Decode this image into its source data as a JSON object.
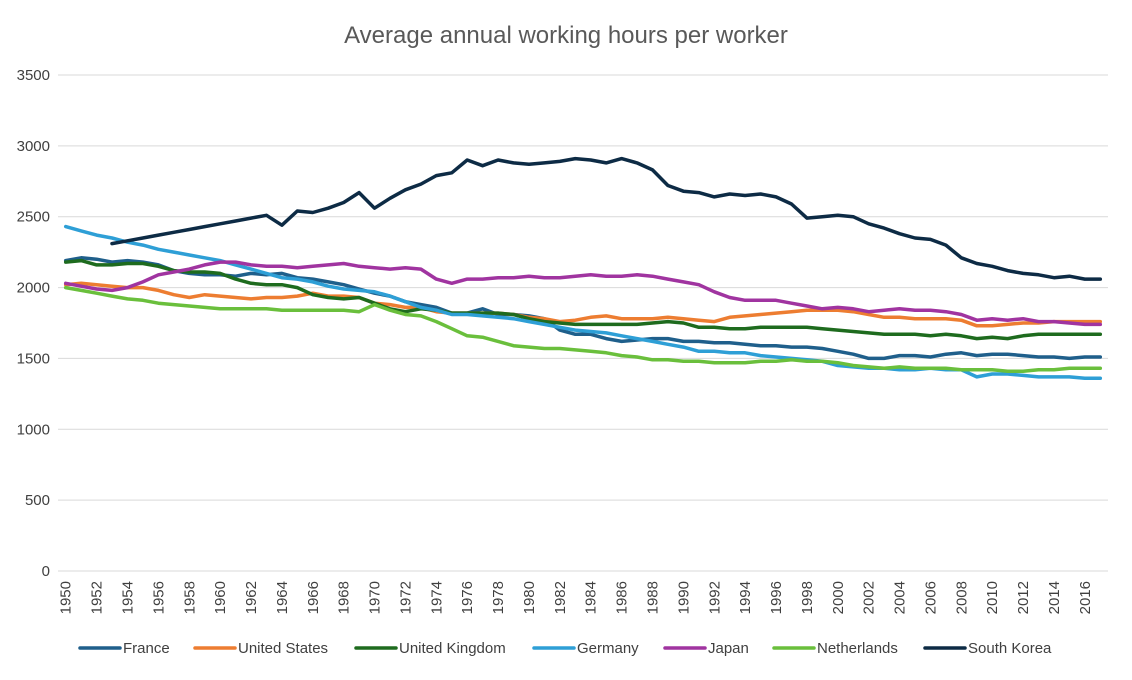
{
  "chart_data": {
    "type": "line",
    "title": "Average annual working hours per worker",
    "xlabel": "",
    "ylabel": "",
    "ylim": [
      0,
      3500
    ],
    "yticks": [
      "0",
      "500",
      "1000",
      "1500",
      "2000",
      "2500",
      "3000",
      "3500"
    ],
    "xrange": [
      1950,
      2017
    ],
    "xticks": [
      "1950",
      "1952",
      "1954",
      "1956",
      "1958",
      "1960",
      "1962",
      "1964",
      "1966",
      "1968",
      "1970",
      "1972",
      "1974",
      "1976",
      "1978",
      "1980",
      "1982",
      "1984",
      "1986",
      "1988",
      "1990",
      "1992",
      "1994",
      "1996",
      "1998",
      "2000",
      "2002",
      "2004",
      "2006",
      "2008",
      "2010",
      "2012",
      "2014",
      "2016"
    ],
    "grid": true,
    "legend_position": "bottom",
    "series": [
      {
        "name": "France",
        "color": "#1f5f8b",
        "start_year": 1950,
        "values": [
          2190,
          2210,
          2200,
          2180,
          2190,
          2180,
          2160,
          2120,
          2100,
          2090,
          2090,
          2080,
          2100,
          2090,
          2100,
          2070,
          2060,
          2040,
          2020,
          1990,
          1960,
          1940,
          1900,
          1880,
          1860,
          1820,
          1820,
          1850,
          1810,
          1810,
          1800,
          1780,
          1700,
          1670,
          1670,
          1640,
          1620,
          1630,
          1640,
          1640,
          1620,
          1620,
          1610,
          1610,
          1600,
          1590,
          1590,
          1580,
          1580,
          1570,
          1550,
          1530,
          1500,
          1500,
          1520,
          1520,
          1510,
          1530,
          1540,
          1520,
          1530,
          1530,
          1520,
          1510,
          1510,
          1500,
          1510,
          1510
        ]
      },
      {
        "name": "United States",
        "color": "#ed7d31",
        "start_year": 1950,
        "values": [
          2020,
          2030,
          2020,
          2010,
          2000,
          2000,
          1980,
          1950,
          1930,
          1950,
          1940,
          1930,
          1920,
          1930,
          1930,
          1940,
          1960,
          1940,
          1940,
          1930,
          1890,
          1880,
          1860,
          1860,
          1830,
          1820,
          1820,
          1820,
          1820,
          1810,
          1790,
          1780,
          1760,
          1770,
          1790,
          1800,
          1780,
          1780,
          1780,
          1790,
          1780,
          1770,
          1760,
          1790,
          1800,
          1810,
          1820,
          1830,
          1840,
          1840,
          1840,
          1830,
          1810,
          1790,
          1790,
          1780,
          1780,
          1780,
          1770,
          1730,
          1730,
          1740,
          1750,
          1750,
          1760,
          1760,
          1760,
          1760
        ]
      },
      {
        "name": "United Kingdom",
        "color": "#1e6b1e",
        "start_year": 1950,
        "values": [
          2180,
          2190,
          2160,
          2160,
          2170,
          2170,
          2150,
          2120,
          2110,
          2110,
          2100,
          2060,
          2030,
          2020,
          2020,
          2000,
          1950,
          1930,
          1920,
          1930,
          1890,
          1850,
          1830,
          1850,
          1840,
          1820,
          1820,
          1820,
          1820,
          1810,
          1780,
          1760,
          1750,
          1740,
          1740,
          1740,
          1740,
          1740,
          1750,
          1760,
          1750,
          1720,
          1720,
          1710,
          1710,
          1720,
          1720,
          1720,
          1720,
          1710,
          1700,
          1690,
          1680,
          1670,
          1670,
          1670,
          1660,
          1670,
          1660,
          1640,
          1650,
          1640,
          1660,
          1670,
          1670,
          1670,
          1670,
          1670
        ]
      },
      {
        "name": "Germany",
        "color": "#2e9fd6",
        "start_year": 1950,
        "values": [
          2430,
          2400,
          2370,
          2350,
          2320,
          2300,
          2270,
          2250,
          2230,
          2210,
          2190,
          2160,
          2130,
          2100,
          2070,
          2060,
          2040,
          2010,
          1990,
          1980,
          1970,
          1940,
          1900,
          1860,
          1840,
          1810,
          1810,
          1800,
          1790,
          1780,
          1760,
          1740,
          1720,
          1700,
          1690,
          1680,
          1660,
          1640,
          1620,
          1600,
          1580,
          1550,
          1550,
          1540,
          1540,
          1520,
          1510,
          1500,
          1490,
          1480,
          1450,
          1440,
          1430,
          1430,
          1420,
          1420,
          1430,
          1420,
          1420,
          1370,
          1390,
          1390,
          1380,
          1370,
          1370,
          1370,
          1360,
          1360
        ]
      },
      {
        "name": "Japan",
        "color": "#a034a0",
        "start_year": 1950,
        "values": [
          2030,
          2010,
          1990,
          1980,
          2000,
          2040,
          2090,
          2110,
          2130,
          2160,
          2180,
          2180,
          2160,
          2150,
          2150,
          2140,
          2150,
          2160,
          2170,
          2150,
          2140,
          2130,
          2140,
          2130,
          2060,
          2030,
          2060,
          2060,
          2070,
          2070,
          2080,
          2070,
          2070,
          2080,
          2090,
          2080,
          2080,
          2090,
          2080,
          2060,
          2040,
          2020,
          1970,
          1930,
          1910,
          1910,
          1910,
          1890,
          1870,
          1850,
          1860,
          1850,
          1830,
          1840,
          1850,
          1840,
          1840,
          1830,
          1810,
          1770,
          1780,
          1770,
          1780,
          1760,
          1760,
          1750,
          1740,
          1740
        ]
      },
      {
        "name": "Netherlands",
        "color": "#6abf3c",
        "start_year": 1950,
        "values": [
          2000,
          1980,
          1960,
          1940,
          1920,
          1910,
          1890,
          1880,
          1870,
          1860,
          1850,
          1850,
          1850,
          1850,
          1840,
          1840,
          1840,
          1840,
          1840,
          1830,
          1880,
          1840,
          1810,
          1800,
          1760,
          1710,
          1660,
          1650,
          1620,
          1590,
          1580,
          1570,
          1570,
          1560,
          1550,
          1540,
          1520,
          1510,
          1490,
          1490,
          1480,
          1480,
          1470,
          1470,
          1470,
          1480,
          1480,
          1490,
          1480,
          1480,
          1470,
          1450,
          1440,
          1430,
          1440,
          1430,
          1430,
          1430,
          1420,
          1420,
          1420,
          1410,
          1410,
          1420,
          1420,
          1430,
          1430,
          1430
        ]
      },
      {
        "name": "South Korea",
        "color": "#0d2b45",
        "start_year": 1953,
        "values": [
          2310,
          2330,
          2350,
          2370,
          2390,
          2410,
          2430,
          2450,
          2470,
          2490,
          2510,
          2440,
          2540,
          2530,
          2560,
          2600,
          2670,
          2560,
          2630,
          2690,
          2730,
          2790,
          2810,
          2900,
          2860,
          2900,
          2880,
          2870,
          2880,
          2890,
          2910,
          2900,
          2880,
          2910,
          2880,
          2830,
          2720,
          2680,
          2670,
          2640,
          2660,
          2650,
          2660,
          2640,
          2590,
          2490,
          2500,
          2510,
          2500,
          2450,
          2420,
          2380,
          2350,
          2340,
          2300,
          2210,
          2170,
          2150,
          2120,
          2100,
          2090,
          2070,
          2080,
          2060,
          2060
        ]
      }
    ]
  }
}
